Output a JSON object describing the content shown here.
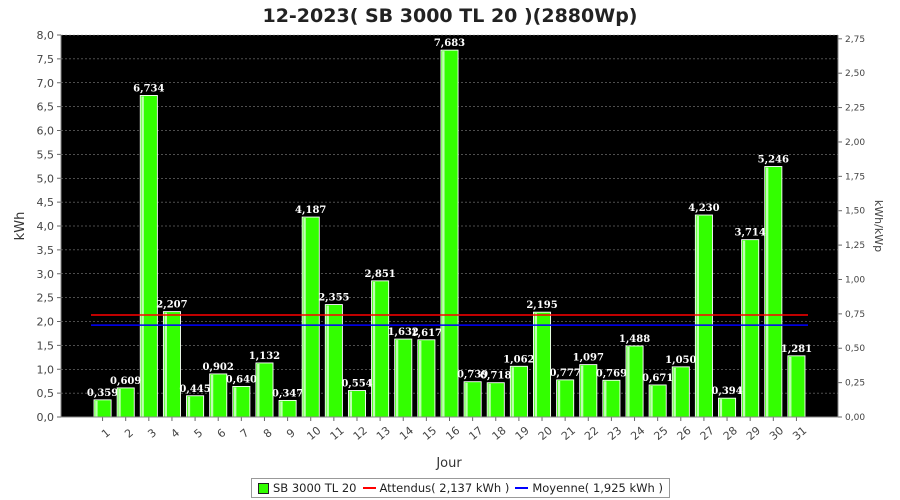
{
  "chart_data": {
    "type": "bar",
    "title": "12-2023( SB 3000 TL 20 )(2880Wp)",
    "xlabel": "Jour",
    "ylabel": "kWh",
    "ylabel_right": "kWh/kWp",
    "ylim": [
      0,
      8
    ],
    "ylim_right": [
      0,
      2.7778
    ],
    "yticks": [
      "0,0",
      "0,5",
      "1,0",
      "1,5",
      "2,0",
      "2,5",
      "3,0",
      "3,5",
      "4,0",
      "4,5",
      "5,0",
      "5,5",
      "6,0",
      "6,5",
      "7,0",
      "7,5",
      "8,0"
    ],
    "yticks_right": [
      "0,00",
      "0,25",
      "0,50",
      "0,75",
      "1,00",
      "1,25",
      "1,50",
      "1,75",
      "2,00",
      "2,25",
      "2,50",
      "2,75"
    ],
    "categories": [
      "1",
      "2",
      "3",
      "4",
      "5",
      "6",
      "7",
      "8",
      "9",
      "10",
      "11",
      "12",
      "13",
      "14",
      "15",
      "16",
      "17",
      "18",
      "19",
      "20",
      "21",
      "22",
      "23",
      "24",
      "25",
      "26",
      "27",
      "28",
      "29",
      "30",
      "31"
    ],
    "series": [
      {
        "name": "SB 3000 TL 20",
        "color": "#33ff00",
        "values": [
          0.359,
          0.609,
          6.734,
          2.207,
          0.445,
          0.902,
          0.64,
          1.132,
          0.347,
          4.187,
          2.355,
          0.554,
          2.851,
          1.632,
          1.617,
          7.683,
          0.739,
          0.718,
          1.062,
          2.195,
          0.777,
          1.097,
          0.769,
          1.488,
          0.671,
          1.05,
          4.23,
          0.394,
          3.714,
          5.246,
          1.281
        ],
        "labels": [
          "0,359",
          "0,609",
          "6,734",
          "2,207",
          "0,445",
          "0,902",
          "0,640",
          "1,132",
          "0,347",
          "4,187",
          "2,355",
          "0,554",
          "2,851",
          "1,632",
          "1,617",
          "7,683",
          "0,739",
          "0,718",
          "1,062",
          "2,195",
          "0,777",
          "1,097",
          "0,769",
          "1,488",
          "0,671",
          "1,050",
          "4,230",
          "0,394",
          "3,714",
          "5,246",
          "1,281"
        ]
      }
    ],
    "reference_lines": [
      {
        "name": "Attendus( 2,137 kWh )",
        "value": 2.137,
        "color": "#ff0000"
      },
      {
        "name": "Moyenne( 1,925 kWh )",
        "value": 1.925,
        "color": "#0000ff"
      }
    ],
    "grid": true,
    "background": "#000000",
    "legend_position": "bottom"
  },
  "legend": {
    "bar_label": "SB 3000 TL 20",
    "expected_label": "Attendus( 2,137 kWh )",
    "average_label": "Moyenne( 1,925 kWh )"
  }
}
